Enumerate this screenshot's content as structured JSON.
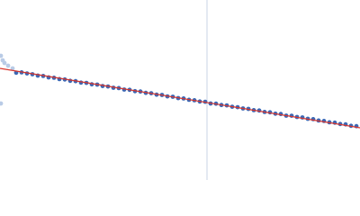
{
  "chart_data": {
    "type": "scatter",
    "xlim": [
      0,
      400
    ],
    "ylim": [
      0,
      200
    ],
    "vline": 230,
    "vline_color": "#c9d3e6",
    "fit": {
      "color": "#d9342b",
      "x": [
        0,
        400
      ],
      "values": [
        124,
        58
      ]
    },
    "series": [
      {
        "color": "#b9cbe6",
        "x": [
          1,
          3,
          5,
          9,
          14,
          1
        ],
        "values": [
          138,
          133,
          130,
          127,
          124,
          85
        ]
      },
      {
        "color": "#3b68b5",
        "x": [
          18,
          24,
          30,
          36,
          42,
          48,
          54,
          60,
          66,
          72,
          78,
          84,
          90,
          96,
          102,
          108,
          114,
          120,
          126,
          132,
          138,
          144,
          150,
          156,
          162,
          168,
          174,
          180,
          186,
          192,
          198,
          204,
          210,
          216,
          222,
          228,
          234,
          240,
          246,
          252,
          258,
          264,
          270,
          276,
          282,
          288,
          294,
          300,
          306,
          312,
          318,
          324,
          330,
          336,
          342,
          348,
          354,
          360,
          366,
          372,
          378,
          384,
          390,
          396
        ],
        "values": [
          119.2,
          119.6,
          118.4,
          117.5,
          116.0,
          115.6,
          114.0,
          113.6,
          112.1,
          111.7,
          110.2,
          109.8,
          108.2,
          107.9,
          106.3,
          106.0,
          104.4,
          103.9,
          102.5,
          102.1,
          100.5,
          100.2,
          98.7,
          98.3,
          96.8,
          96.4,
          94.8,
          94.5,
          92.9,
          92.5,
          91.0,
          90.6,
          89.1,
          88.6,
          87.2,
          86.9,
          85.0,
          84.8,
          83.3,
          82.9,
          81.4,
          80.9,
          79.5,
          79.0,
          77.6,
          77.2,
          75.6,
          75.2,
          73.7,
          73.3,
          71.5,
          71.4,
          70.0,
          69.5,
          68.0,
          67.6,
          66.1,
          65.6,
          64.1,
          63.7,
          62.2,
          61.8,
          60.2,
          59.8
        ]
      }
    ]
  }
}
